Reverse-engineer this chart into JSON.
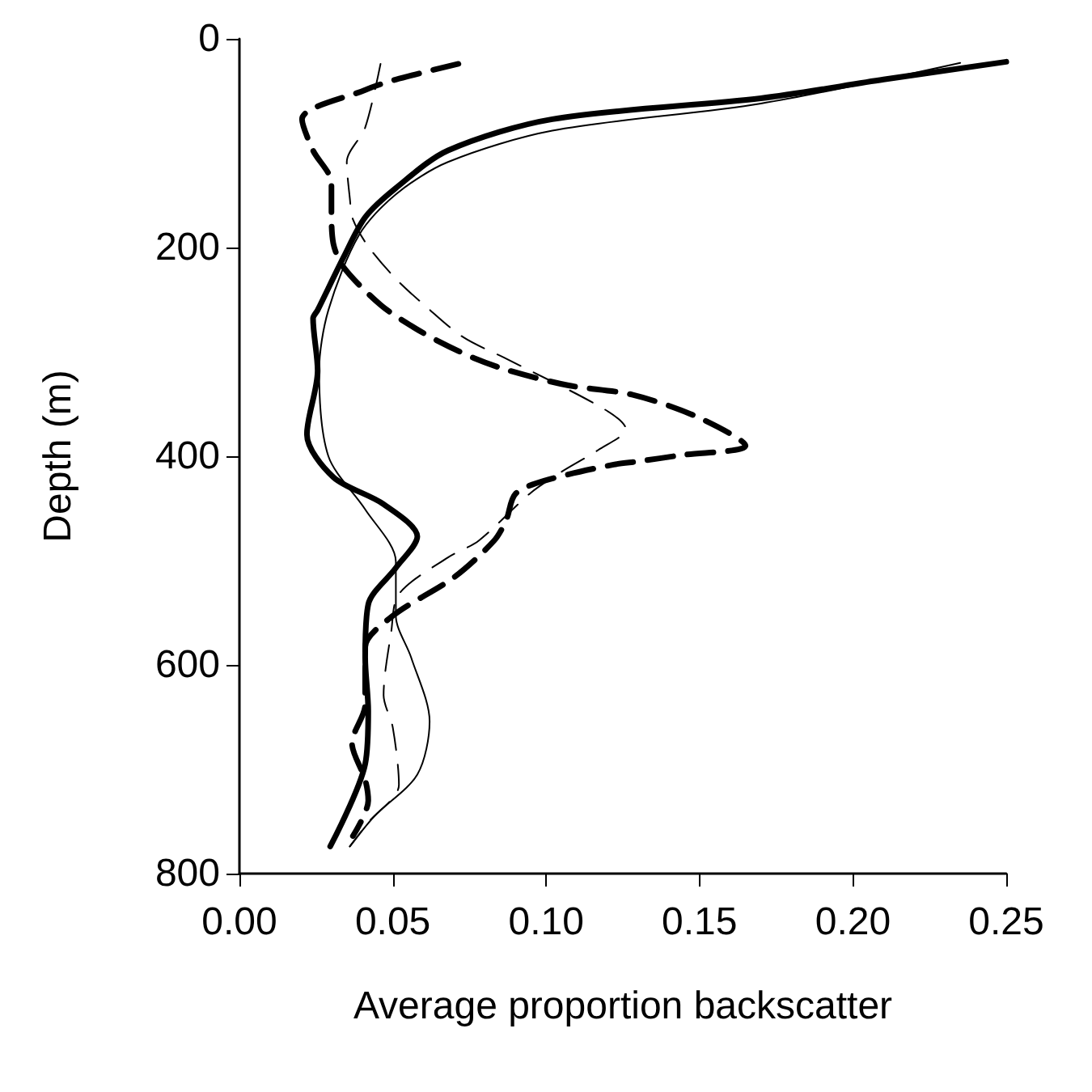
{
  "chart_data": {
    "type": "line",
    "xlabel": "Average proportion backscatter",
    "ylabel": "Depth (m)",
    "xlim": [
      0,
      0.25
    ],
    "xticks": [
      {
        "value": 0,
        "label": "0.00"
      },
      {
        "value": 0.05,
        "label": "0.05"
      },
      {
        "value": 0.1,
        "label": "0.10"
      },
      {
        "value": 0.15,
        "label": "0.15"
      },
      {
        "value": 0.2,
        "label": "0.20"
      },
      {
        "value": 0.25,
        "label": "0.25"
      }
    ],
    "ylim": [
      800,
      0
    ],
    "yticks": [
      0,
      200,
      400,
      600,
      800
    ],
    "grid": false,
    "marker": "none",
    "series": [
      {
        "color": "#000000",
        "line_style": "solid",
        "x": [
          0.25,
          0.21,
          0.17,
          0.102,
          0.068,
          0.051,
          0.041,
          0.034,
          0.0255,
          0.024,
          0.0255,
          0.022,
          0.0306,
          0.047,
          0.058,
          0.051,
          0.042,
          0.041,
          0.042,
          0.041,
          0.0296
        ],
        "values": [
          22,
          39,
          57,
          77,
          107,
          143,
          171,
          209,
          260,
          268,
          318,
          379,
          420,
          446,
          477,
          507,
          542,
          593,
          644,
          695,
          774
        ]
      },
      {
        "color": "#000000",
        "line_style": "solid",
        "x": [
          0.235,
          0.17,
          0.102,
          0.068,
          0.051,
          0.039,
          0.029,
          0.026,
          0.029,
          0.041,
          0.051,
          0.051,
          0.056,
          0.062,
          0.058,
          0.044,
          0.036
        ],
        "values": [
          23,
          62,
          88,
          118,
          149,
          188,
          260,
          318,
          400,
          451,
          501,
          553,
          593,
          654,
          705,
          745,
          774
        ]
      },
      {
        "color": "#000000",
        "line_style": "dashed",
        "x": [
          0.0714,
          0.051,
          0.041,
          0.0204,
          0.024,
          0.03,
          0.03,
          0.0306,
          0.034,
          0.046,
          0.056,
          0.065,
          0.0765,
          0.088,
          0.107,
          0.128,
          0.149,
          0.165,
          0.144,
          0.13,
          0.122,
          0.1,
          0.09,
          0.087,
          0.083,
          0.07,
          0.05,
          0.041,
          0.041,
          0.0367,
          0.041,
          0.042,
          0.037
        ],
        "values": [
          24,
          39,
          49,
          77,
          107,
          138,
          165,
          196,
          219,
          255,
          275,
          290,
          306,
          318,
          332,
          341,
          362,
          390,
          399,
          405,
          408,
          423,
          436,
          461,
          481,
          516,
          553,
          583,
          638,
          675,
          710,
          730,
          764
        ]
      },
      {
        "color": "#000000",
        "line_style": "dashed",
        "x": [
          0.046,
          0.041,
          0.035,
          0.036,
          0.037,
          0.042,
          0.051,
          0.061,
          0.073,
          0.088,
          0.119,
          0.126,
          0.117,
          0.105,
          0.095,
          0.078,
          0.068,
          0.052,
          0.0495,
          0.047,
          0.05,
          0.052,
          0.042,
          0.036
        ],
        "values": [
          24,
          85,
          118,
          153,
          173,
          199,
          230,
          257,
          286,
          308,
          355,
          374,
          394,
          415,
          435,
          481,
          497,
          532,
          568,
          629,
          660,
          715,
          751,
          774
        ]
      }
    ]
  }
}
